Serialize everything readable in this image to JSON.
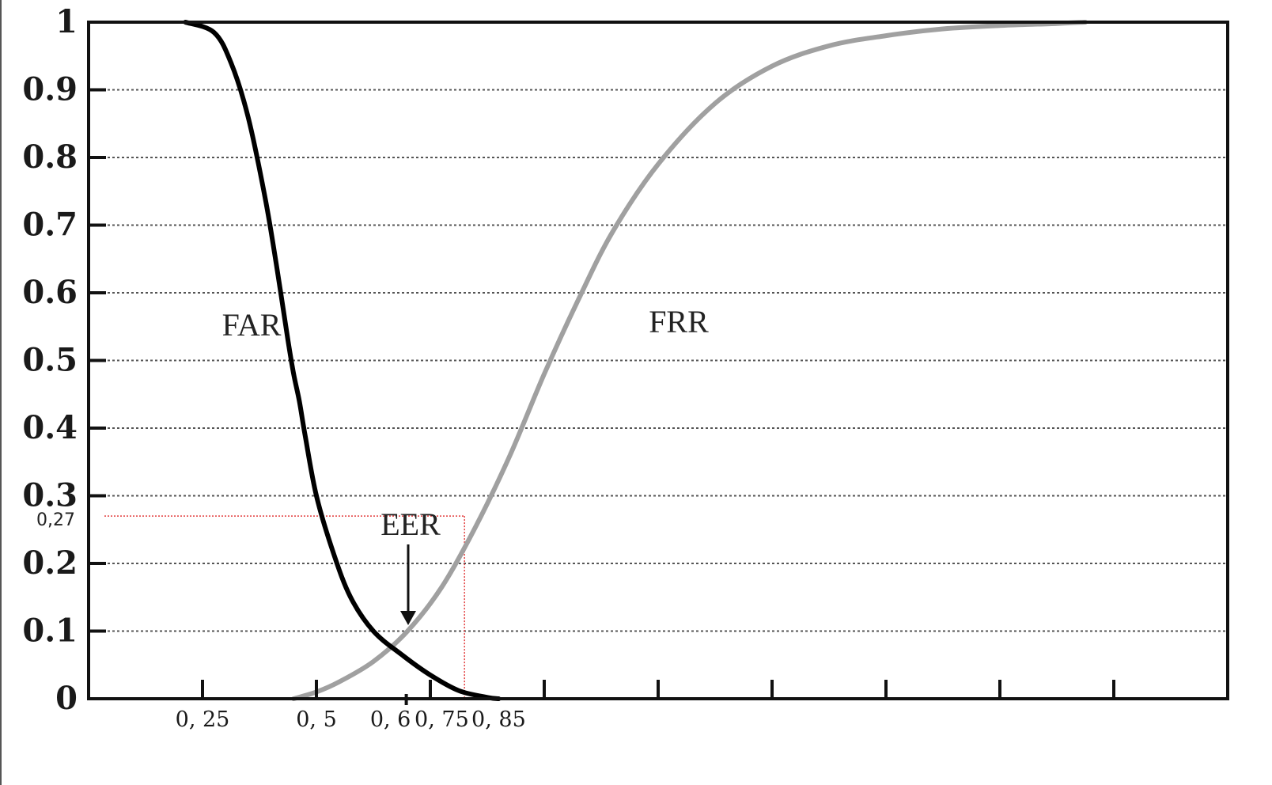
{
  "chart_data": {
    "type": "line",
    "title": "",
    "xlabel": "",
    "ylabel": "",
    "xlim": [
      0,
      1.0
    ],
    "ylim": [
      0,
      1
    ],
    "grid": "horizontal-dotted",
    "y_ticks": [
      {
        "value": 0,
        "label": "0"
      },
      {
        "value": 0.1,
        "label": "0.1"
      },
      {
        "value": 0.2,
        "label": "0.2"
      },
      {
        "value": 0.3,
        "label": "0.3"
      },
      {
        "value": 0.4,
        "label": "0.4"
      },
      {
        "value": 0.5,
        "label": "0.5"
      },
      {
        "value": 0.6,
        "label": "0.6"
      },
      {
        "value": 0.7,
        "label": "0.7"
      },
      {
        "value": 0.8,
        "label": "0.8"
      },
      {
        "value": 0.9,
        "label": "0.9"
      },
      {
        "value": 1,
        "label": "1"
      }
    ],
    "x_major_ticks": [
      0.1,
      0.2,
      0.3,
      0.4,
      0.5,
      0.6,
      0.7,
      0.8,
      0.9
    ],
    "x_labels": [
      {
        "value": 0.1,
        "label": "0, 25"
      },
      {
        "value": 0.2,
        "label": "0, 5"
      },
      {
        "value": 0.265,
        "label": "0, 6"
      },
      {
        "value": 0.31,
        "label": "0, 75"
      },
      {
        "value": 0.36,
        "label": "0, 85"
      }
    ],
    "series": [
      {
        "name": "FAR",
        "color": "#000000",
        "x": [
          0.085,
          0.11,
          0.125,
          0.14,
          0.155,
          0.165,
          0.175,
          0.18,
          0.185,
          0.19,
          0.2,
          0.215,
          0.23,
          0.25,
          0.275,
          0.3,
          0.325,
          0.35,
          0.36
        ],
        "y": [
          1.0,
          0.985,
          0.94,
          0.86,
          0.74,
          0.64,
          0.53,
          0.48,
          0.44,
          0.39,
          0.3,
          0.215,
          0.15,
          0.1,
          0.065,
          0.035,
          0.012,
          0.002,
          0.0
        ]
      },
      {
        "name": "FRR",
        "color": "#a0a0a0",
        "x": [
          0.18,
          0.2,
          0.22,
          0.25,
          0.28,
          0.31,
          0.34,
          0.37,
          0.4,
          0.43,
          0.46,
          0.5,
          0.55,
          0.6,
          0.65,
          0.7,
          0.75,
          0.8,
          0.85,
          0.875
        ],
        "y": [
          0.0,
          0.01,
          0.025,
          0.055,
          0.1,
          0.165,
          0.255,
          0.36,
          0.48,
          0.59,
          0.69,
          0.79,
          0.88,
          0.935,
          0.965,
          0.98,
          0.99,
          0.995,
          0.998,
          1.0
        ]
      }
    ],
    "annotations": [
      {
        "text": "EER",
        "x": 0.252,
        "y": 0.075,
        "type": "arrow"
      },
      {
        "text": "0,27",
        "y": 0.27,
        "x": 0.33,
        "type": "guide-lines"
      }
    ]
  },
  "labels": {
    "far": "FAR",
    "frr": "FRR",
    "eer": "EER",
    "guide_value": "0,27"
  }
}
